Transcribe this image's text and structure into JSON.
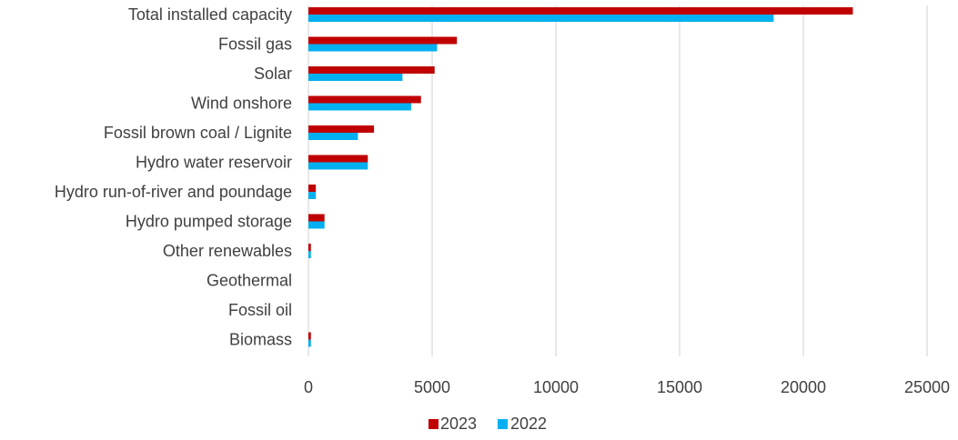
{
  "chart_data": {
    "type": "bar",
    "orientation": "horizontal",
    "title": "",
    "xlabel": "",
    "ylabel": "",
    "xlim": [
      0,
      25000
    ],
    "xticks": [
      0,
      5000,
      10000,
      15000,
      20000,
      25000
    ],
    "grid": true,
    "legend_position": "bottom",
    "categories": [
      "Total installed capacity",
      "Fossil gas",
      "Solar",
      "Wind onshore",
      "Fossil brown coal / Lignite",
      "Hydro water reservoir",
      "Hydro run-of-river and poundage",
      "Hydro pumped storage",
      "Other renewables",
      "Geothermal",
      "Fossil oil",
      "Biomass"
    ],
    "series": [
      {
        "name": "2023",
        "color": "#c00000",
        "values": [
          22000,
          6000,
          5100,
          4550,
          2650,
          2400,
          300,
          650,
          100,
          0,
          0,
          100
        ]
      },
      {
        "name": "2022",
        "color": "#00b0f0",
        "values": [
          18800,
          5200,
          3800,
          4150,
          2000,
          2400,
          300,
          650,
          100,
          0,
          0,
          100
        ]
      }
    ]
  }
}
